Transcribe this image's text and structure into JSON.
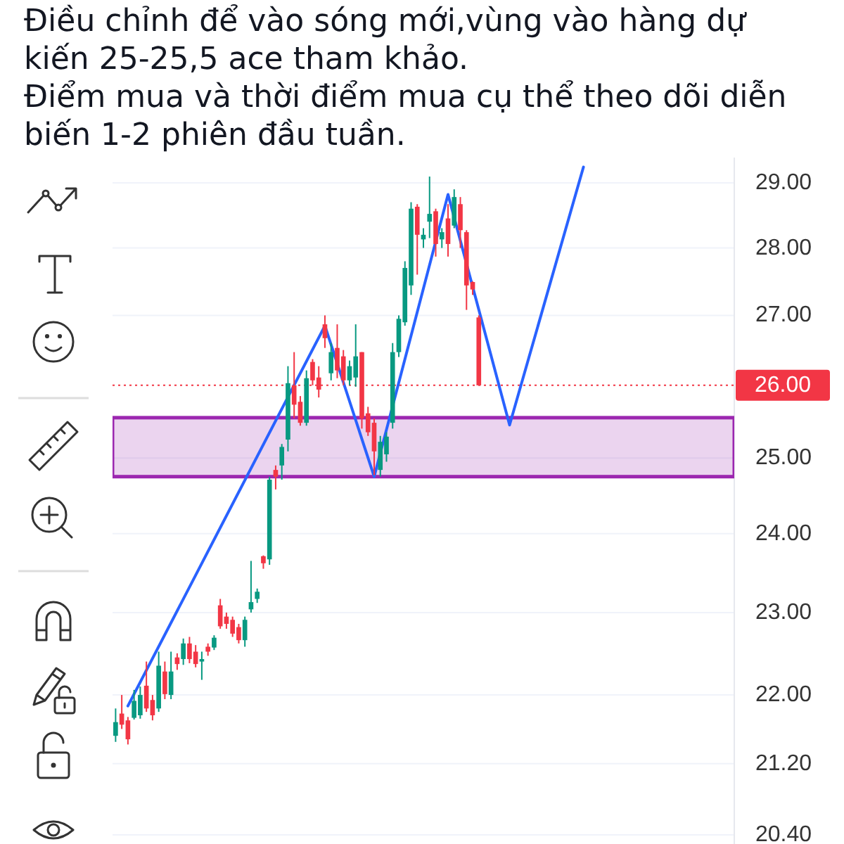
{
  "chart_data": {
    "type": "candlestick",
    "title": "Điều chỉnh để vào sóng mới,vùng vào hàng dự kiến 25-25,5 ace tham khảo.",
    "subtitle": "Điểm mua và thời điểm mua cụ thể theo dõi diễn biến 1-2 phiên đầu tuần.",
    "categories": [
      null,
      null,
      null,
      null,
      null,
      null,
      null,
      null,
      null,
      null,
      null,
      null,
      null,
      null,
      null,
      null,
      null,
      null,
      null,
      null,
      null,
      null,
      null,
      null,
      null,
      null,
      null,
      null,
      null,
      null,
      null,
      null,
      null,
      null,
      null,
      null,
      null,
      null,
      null,
      null,
      null,
      null,
      null,
      null,
      null,
      null,
      null,
      null,
      null,
      null,
      null,
      null,
      null,
      null,
      null,
      null,
      null,
      null,
      null,
      null,
      null,
      null,
      null,
      null,
      null,
      null,
      null,
      null,
      null,
      null,
      null,
      null,
      null,
      null,
      null,
      null,
      null,
      null,
      null,
      null,
      null,
      null,
      null,
      null,
      null,
      null,
      null,
      null,
      null,
      null,
      null,
      null,
      null,
      null,
      null,
      null,
      null,
      null,
      null,
      null,
      null
    ],
    "series": [
      {
        "ohlc": [
          [
            21.52,
            21.84,
            21.45,
            21.68
          ],
          [
            21.78,
            22.0,
            21.6,
            21.65
          ],
          [
            21.7,
            21.74,
            21.42,
            21.48
          ],
          [
            21.73,
            22.06,
            21.71,
            21.93
          ],
          [
            21.76,
            22.1,
            21.72,
            22.0
          ],
          [
            22.11,
            22.4,
            21.8,
            21.84
          ],
          [
            21.94,
            22.0,
            21.7,
            21.76
          ],
          [
            21.84,
            22.52,
            21.8,
            22.35
          ],
          [
            22.28,
            22.4,
            21.95,
            22.01
          ],
          [
            22.0,
            22.52,
            21.95,
            22.28
          ],
          [
            22.45,
            22.5,
            22.3,
            22.37
          ],
          [
            22.43,
            22.68,
            22.36,
            22.62
          ],
          [
            22.62,
            22.7,
            22.38,
            22.43
          ],
          [
            22.52,
            22.6,
            22.33,
            22.37
          ],
          [
            22.4,
            22.52,
            22.18,
            22.43
          ],
          [
            22.58,
            22.62,
            22.47,
            22.52
          ],
          [
            22.57,
            22.72,
            22.54,
            22.69
          ],
          [
            23.09,
            23.17,
            22.8,
            22.83
          ],
          [
            22.95,
            23.0,
            22.8,
            22.86
          ],
          [
            22.91,
            22.95,
            22.7,
            22.74
          ],
          [
            22.82,
            22.86,
            22.62,
            22.66
          ],
          [
            22.66,
            22.95,
            22.58,
            22.91
          ],
          [
            23.04,
            23.65,
            23.0,
            23.13
          ],
          [
            23.17,
            23.3,
            23.12,
            23.26
          ],
          [
            23.71,
            23.72,
            23.55,
            23.62
          ],
          [
            23.67,
            24.75,
            23.6,
            24.71
          ],
          [
            24.84,
            24.9,
            24.58,
            24.75
          ],
          [
            24.9,
            25.19,
            24.71,
            25.15
          ],
          [
            25.25,
            26.27,
            25.09,
            26.03
          ],
          [
            26.0,
            26.47,
            25.54,
            25.73
          ],
          [
            25.77,
            25.85,
            25.44,
            25.48
          ],
          [
            25.48,
            26.21,
            25.44,
            26.1
          ],
          [
            26.33,
            26.37,
            26.0,
            26.07
          ],
          [
            26.11,
            26.27,
            25.83,
            25.94
          ],
          [
            26.87,
            27.0,
            26.53,
            26.67
          ],
          [
            26.17,
            26.6,
            26.07,
            26.47
          ],
          [
            26.53,
            26.87,
            26.1,
            26.21
          ],
          [
            26.41,
            26.5,
            26.0,
            26.07
          ],
          [
            26.07,
            26.35,
            26.0,
            26.27
          ],
          [
            26.11,
            26.87,
            25.98,
            26.41
          ],
          [
            26.47,
            26.47,
            25.4,
            25.54
          ],
          [
            25.61,
            25.7,
            25.3,
            25.35
          ],
          [
            25.48,
            25.54,
            24.77,
            25.09
          ],
          [
            24.84,
            25.3,
            24.75,
            25.22
          ],
          [
            25.05,
            25.35,
            24.95,
            25.29
          ],
          [
            25.48,
            26.6,
            25.4,
            26.47
          ],
          [
            26.47,
            27.0,
            26.4,
            26.95
          ],
          [
            26.9,
            27.8,
            26.85,
            27.7
          ],
          [
            27.44,
            28.7,
            27.3,
            28.6
          ],
          [
            28.63,
            28.67,
            27.6,
            28.2
          ],
          [
            28.13,
            28.3,
            28.0,
            28.2
          ],
          [
            28.4,
            29.1,
            28.15,
            28.52
          ],
          [
            28.56,
            28.6,
            27.87,
            28.06
          ],
          [
            28.13,
            28.3,
            28.0,
            28.24
          ],
          [
            28.45,
            28.67,
            27.87,
            28.06
          ],
          [
            28.34,
            28.9,
            28.3,
            28.78
          ],
          [
            28.67,
            28.78,
            28.0,
            28.27
          ],
          [
            28.24,
            28.27,
            27.08,
            27.44
          ],
          [
            27.49,
            27.5,
            27.3,
            27.38
          ],
          [
            26.97,
            27.0,
            26.0,
            26.0
          ],
          null,
          null,
          null,
          null,
          null,
          null,
          null,
          null,
          null,
          null,
          null,
          null,
          null,
          null,
          null,
          null,
          null,
          null,
          null,
          null,
          null,
          null,
          null,
          null,
          null,
          null,
          null,
          null,
          null,
          null,
          null,
          null,
          null,
          null,
          null,
          null,
          null,
          null,
          null,
          null,
          null
        ],
        "colors": [
          "#089981",
          "#f23645",
          "#f23645",
          "#089981",
          "#089981",
          "#f23645",
          "#f23645",
          "#089981",
          "#f23645",
          "#089981",
          "#f23645",
          "#089981",
          "#f23645",
          "#f23645",
          "#089981",
          "#f23645",
          "#089981",
          "#f23645",
          "#f23645",
          "#f23645",
          "#f23645",
          "#089981",
          "#089981",
          "#089981",
          "#f23645",
          "#089981",
          "#f23645",
          "#089981",
          "#089981",
          "#f23645",
          "#f23645",
          "#089981",
          "#f23645",
          "#f23645",
          "#f23645",
          "#089981",
          "#f23645",
          "#f23645",
          "#089981",
          "#089981",
          "#f23645",
          "#f23645",
          "#f23645",
          "#089981",
          "#089981",
          "#089981",
          "#089981",
          "#089981",
          "#089981",
          "#f23645",
          "#089981",
          "#089981",
          "#f23645",
          "#089981",
          "#f23645",
          "#089981",
          "#f23645",
          "#f23645",
          "#f23645",
          "#f23645",
          null,
          null,
          null,
          null,
          null,
          null,
          null,
          null,
          null,
          null,
          null,
          null,
          null,
          null,
          null,
          null,
          null,
          null,
          null,
          null,
          null,
          null,
          null,
          null,
          null,
          null,
          null,
          null,
          null,
          null,
          null,
          null,
          null,
          null,
          null,
          null,
          null,
          null,
          null,
          null,
          null
        ]
      },
      {
        "type": "line",
        "color": "#2962ff",
        "values": [
          null,
          null,
          21.87,
          null,
          null,
          null,
          null,
          null,
          null,
          null,
          null,
          null,
          null,
          null,
          null,
          null,
          null,
          null,
          null,
          null,
          null,
          null,
          null,
          null,
          null,
          null,
          null,
          null,
          null,
          null,
          null,
          null,
          null,
          null,
          26.85,
          null,
          null,
          null,
          null,
          null,
          null,
          null,
          24.75,
          null,
          null,
          null,
          null,
          null,
          null,
          null,
          null,
          null,
          null,
          null,
          28.82,
          null,
          null,
          null,
          null,
          null,
          null,
          null,
          null,
          null,
          25.45,
          null,
          null,
          null,
          null,
          null,
          null,
          null,
          null,
          null,
          null,
          null,
          29.25,
          null,
          null,
          null,
          null,
          null,
          null,
          null,
          null,
          null,
          null,
          null,
          null,
          null,
          null,
          null,
          null,
          null,
          null,
          null,
          null,
          null,
          null,
          null,
          null
        ]
      }
    ],
    "log": "y",
    "ylim": [
      20.3,
      29.4
    ],
    "yticks": [
      {
        "value": 29,
        "label": "29.00"
      },
      {
        "value": 28,
        "label": "28.00"
      },
      {
        "value": 27,
        "label": "27.00"
      },
      {
        "value": 25,
        "label": "25.00"
      },
      {
        "value": 24,
        "label": "24.00"
      },
      {
        "value": 23,
        "label": "23.00"
      },
      {
        "value": 22,
        "label": "22.00"
      },
      {
        "value": 21.2,
        "label": "21.20"
      },
      {
        "value": 20.4,
        "label": "20.40"
      }
    ],
    "grid": "y",
    "ref_lines": [
      {
        "axis": "y",
        "value": 26,
        "label": "26.00",
        "color": "#f23645",
        "line_style": "dotted"
      }
    ],
    "bands": [
      {
        "axis": "y",
        "from": 24.75,
        "to": 25.55,
        "color": "#9c27b0"
      }
    ]
  }
}
